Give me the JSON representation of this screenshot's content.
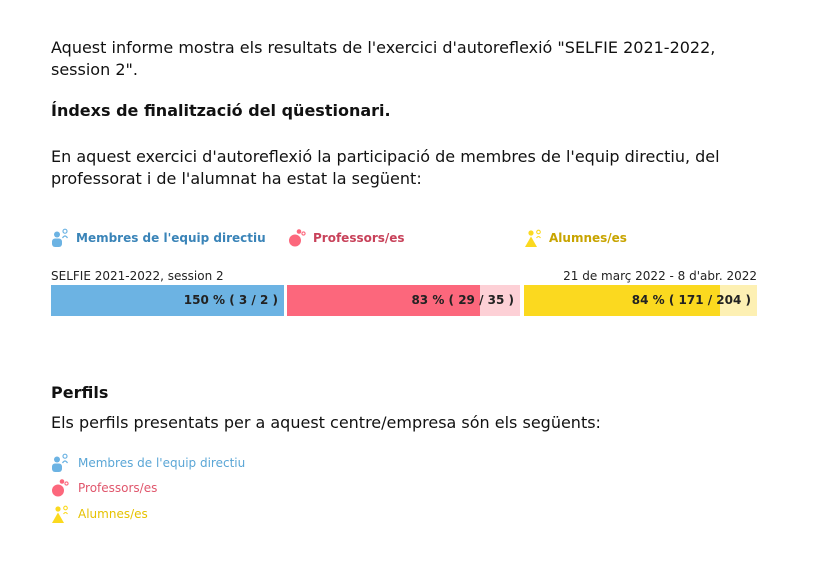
{
  "intro": "Aquest informe mostra els resultats de l'exercici d'autoreflexió \"SELFIE 2021-2022, session 2\".",
  "completion_heading": "Índexs de finalització del qüestionari.",
  "participation_text": "En aquest exercici d'autoreflexió la participació de membres de l'equip directiu, del professorat i de l'alumnat ha estat la següent:",
  "legend": [
    {
      "label": "Membres de l'equip directiu",
      "icon": "leaders-icon",
      "color": "#3a84b8"
    },
    {
      "label": "Professors/es",
      "icon": "teachers-icon",
      "color": "#c8425a"
    },
    {
      "label": "Alumnes/es",
      "icon": "students-icon",
      "color": "#c8a400"
    }
  ],
  "session": "SELFIE 2021-2022, session 2",
  "date_range": "21 de març 2022 - 8 d'abr. 2022",
  "bars": [
    {
      "label": "150 % ( 3 / 2 )",
      "fill_fraction": 1.0,
      "fill_color": "#6cb3e3",
      "bg_color": "#cfe6f6"
    },
    {
      "label": "83 % ( 29 / 35 )",
      "fill_fraction": 0.83,
      "fill_color": "#fc677c",
      "bg_color": "#fdd0d6"
    },
    {
      "label": "84 % ( 171 / 204 )",
      "fill_fraction": 0.84,
      "fill_color": "#fbd91f",
      "bg_color": "#fdf0b3"
    }
  ],
  "profiles_heading": "Perfils",
  "profiles_text": "Els perfils presentats per a aquest centre/empresa són els següents:",
  "profiles": [
    {
      "label": "Membres de l'equip directiu",
      "icon": "leaders-icon",
      "color": "#5aa6d6"
    },
    {
      "label": "Professors/es",
      "icon": "teachers-icon",
      "color": "#e0566c"
    },
    {
      "label": "Alumnes/es",
      "icon": "students-icon",
      "color": "#e6c200"
    }
  ]
}
